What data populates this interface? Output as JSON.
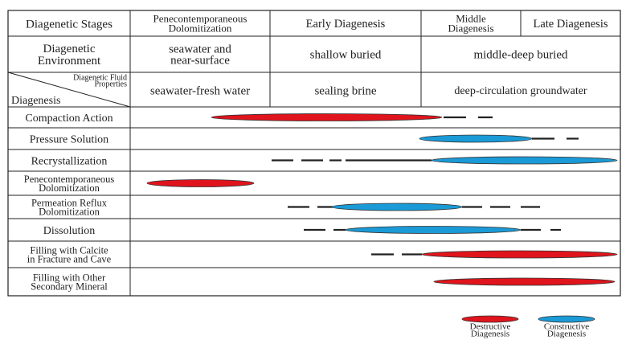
{
  "colors": {
    "destructive": "#e0141c",
    "constructive": "#1a9ad6",
    "line": "#222222"
  },
  "header": {
    "stages_label": "Diagenetic Stages",
    "stages": [
      [
        "Penecontemporaneous",
        "Dolomitization"
      ],
      [
        "Early Diagenesis"
      ],
      [
        "Middle",
        "Diagenesis"
      ],
      [
        "Late Diagenesis"
      ]
    ],
    "environment_label": [
      "Diagenetic",
      "Environment"
    ],
    "environments": [
      [
        "seawater and",
        "near-surface"
      ],
      [
        "shallow buried"
      ],
      [
        "middle-deep buried"
      ]
    ],
    "fluid_label": [
      "Diagenetic Fluid",
      "Properties"
    ],
    "diagenesis_label": "Diagenesis",
    "fluids": [
      "seawater-fresh water",
      "sealing brine",
      "deep-circulation groundwater"
    ]
  },
  "rows": [
    {
      "label": [
        "Compaction Action"
      ],
      "type": "destructive"
    },
    {
      "label": [
        "Pressure Solution"
      ],
      "type": "constructive"
    },
    {
      "label": [
        "Recrystallization"
      ],
      "type": "constructive"
    },
    {
      "label": [
        "Penecontemporaneous",
        "Dolomitization"
      ],
      "type": "destructive"
    },
    {
      "label": [
        "Permeation Reflux",
        "Dolomitization"
      ],
      "type": "constructive"
    },
    {
      "label": [
        "Dissolution"
      ],
      "type": "constructive"
    },
    {
      "label": [
        "Filling with Calcite",
        "in Fracture and Cave"
      ],
      "type": "destructive"
    },
    {
      "label": [
        "Filling with Other",
        "Secondary Mineral"
      ],
      "type": "destructive"
    }
  ],
  "legend": [
    {
      "label": [
        "Destructive",
        "Diagenesis"
      ],
      "type": "destructive"
    },
    {
      "label": [
        "Constructive",
        "Diagenesis"
      ],
      "type": "constructive"
    }
  ]
}
